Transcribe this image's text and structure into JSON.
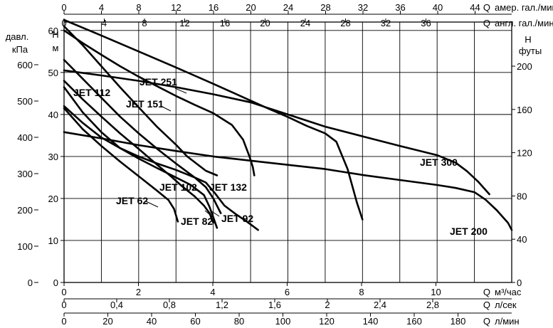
{
  "chart_data": {
    "type": "line",
    "top_axes": [
      {
        "letter": "Q",
        "unit": "амер. гал./мин",
        "ticks": [
          "0",
          "4",
          "8",
          "12",
          "16",
          "20",
          "24",
          "28",
          "32",
          "36",
          "40",
          "44"
        ]
      },
      {
        "letter": "Q",
        "unit": "англ. гал./мин",
        "ticks": [
          "0",
          "4",
          "8",
          "12",
          "16",
          "20",
          "24",
          "28",
          "32",
          "36"
        ]
      }
    ],
    "bottom_axes": [
      {
        "letter": "Q",
        "unit": "м³/час",
        "ticks": [
          "0",
          "2",
          "4",
          "6",
          "8",
          "10"
        ]
      },
      {
        "letter": "Q",
        "unit": "л/сек",
        "ticks": [
          "0",
          "0,4",
          "0,8",
          "1,2",
          "1,6",
          "2",
          "2,4",
          "2,8"
        ]
      },
      {
        "letter": "Q",
        "unit": "л/мин",
        "ticks": [
          "0",
          "20",
          "40",
          "60",
          "80",
          "100",
          "120",
          "140",
          "160",
          "180"
        ]
      }
    ],
    "left_axes": [
      {
        "title_line1": "давл.",
        "title_line2": "кПа",
        "ticks": [
          "0",
          "100",
          "200",
          "300",
          "400",
          "500",
          "600"
        ]
      },
      {
        "title_line1": "Н",
        "title_line2": "м",
        "ticks": [
          "0",
          "10",
          "20",
          "30",
          "40",
          "50",
          "60"
        ]
      }
    ],
    "right_axis": {
      "title_line1": "Н",
      "title_line2": "футы",
      "ticks": [
        "0",
        "40",
        "80",
        "120",
        "160",
        "200"
      ]
    },
    "x_unit": "м³/час",
    "y_unit": "м",
    "xlim": [
      0,
      12
    ],
    "ylim": [
      0,
      62
    ],
    "grid": true,
    "series": [
      {
        "name": "JET 62",
        "x": [
          0,
          0.5,
          1,
          1.5,
          2,
          2.5,
          2.8,
          2.95,
          3.05
        ],
        "y": [
          41.5,
          36.5,
          32.5,
          28.8,
          25.3,
          21.8,
          19.6,
          17.5,
          14.5
        ]
      },
      {
        "name": "JET 82",
        "x": [
          0,
          0.5,
          1,
          1.5,
          2,
          2.5,
          3,
          3.4,
          3.75,
          3.9,
          4.0,
          4.1
        ],
        "y": [
          46.5,
          40.5,
          35.8,
          32,
          29.5,
          27.2,
          25,
          23.2,
          20.8,
          18,
          15.5,
          13
        ]
      },
      {
        "name": "JET 92",
        "x": [
          0,
          0.5,
          1,
          1.5,
          2,
          2.5,
          3,
          3.5,
          3.8,
          4.05,
          4.3,
          4.6,
          4.9,
          5.2
        ],
        "y": [
          42,
          38,
          34.5,
          32,
          30,
          28.3,
          26.8,
          25,
          23.8,
          21.2,
          18.3,
          16.3,
          14.5,
          12.5
        ]
      },
      {
        "name": "JET 102",
        "x": [
          0,
          0.5,
          1,
          1.5,
          2,
          2.5,
          2.9,
          3.15,
          3.5,
          3.75,
          3.9,
          4.0
        ],
        "y": [
          48,
          43.6,
          39.5,
          35.5,
          31.8,
          28,
          25,
          23,
          20.5,
          18.3,
          16.5,
          14.2
        ]
      },
      {
        "name": "JET 112",
        "x": [
          0,
          0.5,
          1,
          1.5,
          2,
          2.5,
          3,
          3.5,
          3.8,
          4.0,
          4.2
        ],
        "y": [
          53,
          48.5,
          44,
          39.5,
          35.5,
          31.8,
          28.3,
          25,
          22.7,
          20,
          16.5
        ]
      },
      {
        "name": "JET 132",
        "x": [
          0,
          0.5,
          1,
          1.5,
          2,
          2.5,
          3,
          3.3,
          3.8,
          4.1
        ],
        "y": [
          61,
          56.5,
          51.5,
          46.5,
          41.7,
          37,
          32.8,
          30,
          26.6,
          25.5
        ]
      },
      {
        "name": "JET 151",
        "x": [
          0,
          0.5,
          1,
          1.5,
          2,
          2.5,
          3,
          3.5,
          4,
          4.5,
          4.8,
          4.97,
          5.06,
          5.1
        ],
        "y": [
          60,
          57,
          54.2,
          51.5,
          49,
          46.7,
          44.4,
          42.3,
          40.3,
          37.5,
          34,
          30,
          27.5,
          25.5
        ]
      },
      {
        "name": "JET 251",
        "x": [
          0,
          1,
          2,
          3,
          4,
          4.5,
          5,
          5.5,
          6,
          6.5,
          7,
          7.3,
          7.6,
          7.85,
          8.0
        ],
        "y": [
          62.5,
          58.8,
          55,
          51.2,
          47.3,
          45.3,
          43.3,
          41.3,
          39.4,
          37.3,
          35.5,
          33.5,
          27,
          19,
          15
        ]
      },
      {
        "name": "JET 300",
        "x": [
          0,
          1,
          2,
          3,
          4,
          5,
          6,
          7,
          8,
          9,
          10,
          10.5,
          10.8,
          11.1,
          11.4
        ],
        "y": [
          50.5,
          49.3,
          48,
          46.5,
          44.8,
          42.9,
          40,
          37.1,
          34.8,
          32.5,
          30.3,
          28.5,
          26.5,
          24,
          21
        ]
      },
      {
        "name": "JET 200",
        "x": [
          0,
          1,
          2,
          3,
          4,
          5,
          6,
          7,
          8,
          9,
          10,
          10.5,
          11,
          11.3,
          11.6,
          11.9,
          12.0
        ],
        "y": [
          35.8,
          34.3,
          32.7,
          31.3,
          30,
          29,
          28,
          27,
          25.6,
          24.4,
          23.2,
          22.5,
          21.5,
          19.7,
          17.2,
          14.2,
          12.5
        ]
      }
    ]
  }
}
